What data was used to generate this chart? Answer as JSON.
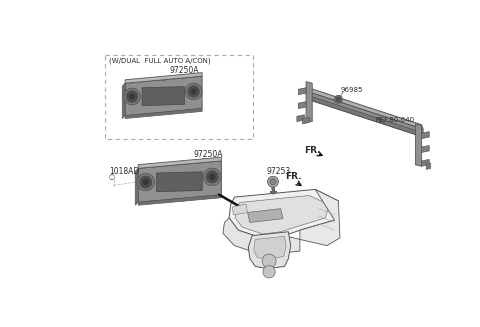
{
  "bg_color": "#ffffff",
  "fig_width": 4.8,
  "fig_height": 3.27,
  "dpi": 100,
  "text_color": "#2a2a2a",
  "line_color": "#555555",
  "part_fill": "#c8c8c8",
  "part_edge": "#555555",
  "dark_fill": "#888888",
  "inset_label": "(W/DUAL  FULL AUTO A/CON)",
  "labels": {
    "97250A_inset": "97250A",
    "97250A_main": "97250A",
    "1018AD": "1018AD",
    "97253": "97253",
    "96985": "96985",
    "ref": "REF.80-640",
    "fr_main": "FR.",
    "fr_right": "FR."
  }
}
